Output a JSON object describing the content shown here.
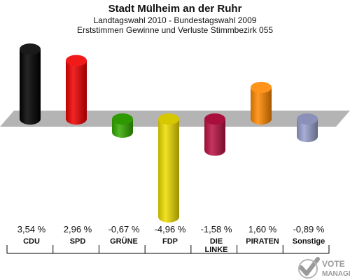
{
  "header": {
    "title": "Stadt Mülheim an der Ruhr",
    "subtitle": "Landtagswahl 2010 - Bundestagswahl 2009",
    "description": "Erststimmen Gewinne und Verluste Stimmbezirk 055"
  },
  "logo": {
    "line1": "VOTE",
    "line2": "MANAGER"
  },
  "chart_data": {
    "type": "bar",
    "categories": [
      "CDU",
      "SPD",
      "GRÜNE",
      "FDP",
      "DIE LINKE",
      "PIRATEN",
      "Sonstige"
    ],
    "category_lines": [
      [
        "CDU"
      ],
      [
        "SPD"
      ],
      [
        "GRÜNE"
      ],
      [
        "FDP"
      ],
      [
        "DIE",
        "LINKE"
      ],
      [
        "PIRATEN"
      ],
      [
        "Sonstige"
      ]
    ],
    "values": [
      3.54,
      2.96,
      -0.67,
      -4.96,
      -1.58,
      1.6,
      -0.89
    ],
    "value_labels": [
      "3,54 %",
      "2,96 %",
      "-0,67 %",
      "-4,96 %",
      "-1,58 %",
      "1,60 %",
      "-0,89 %"
    ],
    "colors": [
      "#000000",
      "#ee0000",
      "#33aa00",
      "#eedd00",
      "#bb1144",
      "#ff8800",
      "#99a0cc"
    ],
    "unit": "%",
    "grid": false,
    "legend": "none"
  }
}
